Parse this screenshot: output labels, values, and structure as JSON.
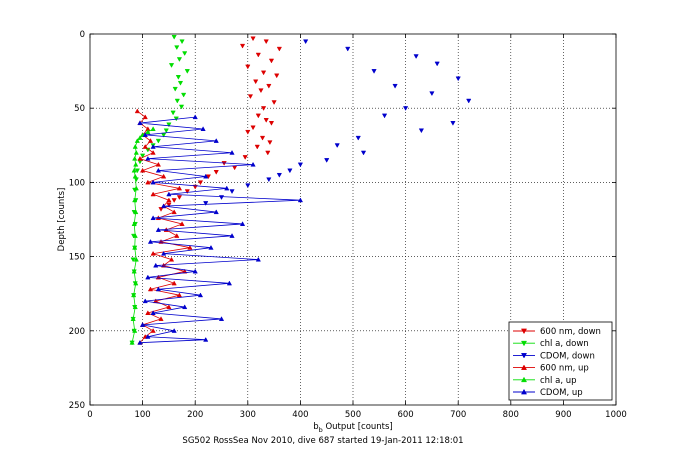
{
  "chart_data": {
    "type": "scatter",
    "title": "",
    "xlabel_main": "b",
    "xlabel_sub": "b",
    "xlabel_rest": " Output [counts]",
    "ylabel": "Depth [counts]",
    "caption": "SG502 RossSea Nov 2010, dive 687 started 19-Jan-2011 12:18:01",
    "xlim": [
      0,
      1000
    ],
    "ylim": [
      250,
      0
    ],
    "y_reversed": true,
    "grid": true,
    "grid_style": "dotted",
    "legend_position": "bottom-right",
    "xticks": [
      "0",
      "100",
      "200",
      "300",
      "400",
      "500",
      "600",
      "700",
      "800",
      "900",
      "1000"
    ],
    "yticks": [
      "0",
      "50",
      "100",
      "150",
      "200",
      "250"
    ],
    "xtick_values": [
      0,
      100,
      200,
      300,
      400,
      500,
      600,
      700,
      800,
      900,
      1000
    ],
    "ytick_values": [
      0,
      50,
      100,
      150,
      200,
      250
    ],
    "series": [
      {
        "name": "600 nm, down",
        "color": "#dd0000",
        "marker": "triangle-down",
        "line": false,
        "x": [
          310,
          335,
          290,
          360,
          320,
          345,
          300,
          330,
          355,
          315,
          340,
          325,
          305,
          350,
          330,
          320,
          335,
          345,
          310,
          300,
          328,
          342,
          318,
          338,
          295,
          255,
          275,
          240,
          225,
          210,
          200,
          185,
          170,
          160,
          150,
          135
        ],
        "y": [
          3,
          5,
          8,
          10,
          14,
          18,
          22,
          26,
          28,
          32,
          35,
          38,
          42,
          46,
          50,
          55,
          58,
          60,
          63,
          66,
          70,
          73,
          76,
          80,
          83,
          87,
          90,
          93,
          96,
          100,
          103,
          106,
          110,
          112,
          115,
          118
        ]
      },
      {
        "name": "chl a, down",
        "color": "#00dd00",
        "marker": "triangle-down",
        "line": false,
        "x": [
          160,
          175,
          165,
          180,
          170,
          155,
          185,
          168,
          172,
          162,
          178,
          166,
          174,
          158,
          164,
          150,
          145,
          140,
          130,
          120,
          110,
          100,
          95,
          90,
          88,
          85,
          87,
          84,
          86,
          83,
          85,
          82,
          84,
          86,
          83,
          85,
          82,
          84,
          80
        ],
        "y": [
          2,
          5,
          9,
          13,
          17,
          21,
          25,
          29,
          33,
          37,
          41,
          45,
          49,
          53,
          57,
          61,
          65,
          68,
          72,
          75,
          78,
          82,
          86,
          92,
          98,
          105,
          112,
          120,
          128,
          136,
          144,
          152,
          160,
          168,
          176,
          184,
          192,
          200,
          208
        ]
      },
      {
        "name": "CDOM, down",
        "color": "#0000cc",
        "marker": "triangle-down",
        "line": false,
        "x": [
          410,
          490,
          620,
          660,
          540,
          700,
          580,
          650,
          720,
          600,
          560,
          690,
          630,
          510,
          470,
          520,
          450,
          400,
          380,
          360,
          340,
          300,
          270,
          250,
          220
        ],
        "y": [
          5,
          10,
          15,
          20,
          25,
          30,
          35,
          40,
          45,
          50,
          55,
          60,
          65,
          70,
          75,
          80,
          85,
          88,
          92,
          95,
          98,
          102,
          106,
          110,
          114
        ]
      },
      {
        "name": "600 nm, up",
        "color": "#dd0000",
        "marker": "triangle-up",
        "line": true,
        "x": [
          95,
          105,
          120,
          100,
          135,
          110,
          150,
          125,
          170,
          115,
          160,
          130,
          180,
          140,
          155,
          120,
          190,
          135,
          165,
          145,
          175,
          130,
          160,
          140,
          150,
          120,
          170,
          110,
          140,
          100,
          130,
          95,
          120,
          105,
          115,
          100,
          110,
          95,
          105,
          90
        ],
        "y": [
          208,
          204,
          200,
          196,
          192,
          188,
          184,
          180,
          176,
          172,
          168,
          164,
          160,
          156,
          152,
          148,
          144,
          140,
          136,
          132,
          128,
          124,
          120,
          116,
          112,
          108,
          104,
          100,
          96,
          92,
          88,
          84,
          80,
          76,
          72,
          68,
          64,
          60,
          56,
          52
        ]
      },
      {
        "name": "chl a, up",
        "color": "#00dd00",
        "marker": "triangle-up",
        "line": true,
        "x": [
          80,
          85,
          82,
          86,
          83,
          87,
          84,
          88,
          85,
          86,
          84,
          87,
          85,
          88,
          86,
          84,
          87,
          85,
          88,
          86,
          90,
          95,
          100,
          110,
          120
        ],
        "y": [
          208,
          200,
          192,
          184,
          176,
          168,
          160,
          152,
          144,
          136,
          128,
          120,
          112,
          104,
          96,
          92,
          88,
          84,
          80,
          76,
          72,
          70,
          68,
          66,
          64
        ]
      },
      {
        "name": "CDOM, up",
        "color": "#0000cc",
        "marker": "triangle-up",
        "line": true,
        "x": [
          95,
          220,
          110,
          160,
          100,
          250,
          120,
          180,
          105,
          210,
          130,
          265,
          110,
          200,
          125,
          320,
          140,
          230,
          115,
          270,
          130,
          290,
          120,
          240,
          140,
          400,
          150,
          260,
          120,
          220,
          130,
          310,
          110,
          270,
          120,
          240,
          105,
          215,
          95,
          200
        ],
        "y": [
          208,
          206,
          204,
          200,
          196,
          192,
          188,
          184,
          180,
          176,
          172,
          168,
          164,
          160,
          156,
          152,
          148,
          144,
          140,
          136,
          132,
          128,
          124,
          120,
          116,
          112,
          108,
          104,
          100,
          96,
          92,
          88,
          84,
          80,
          76,
          72,
          68,
          64,
          60,
          56
        ]
      }
    ]
  }
}
